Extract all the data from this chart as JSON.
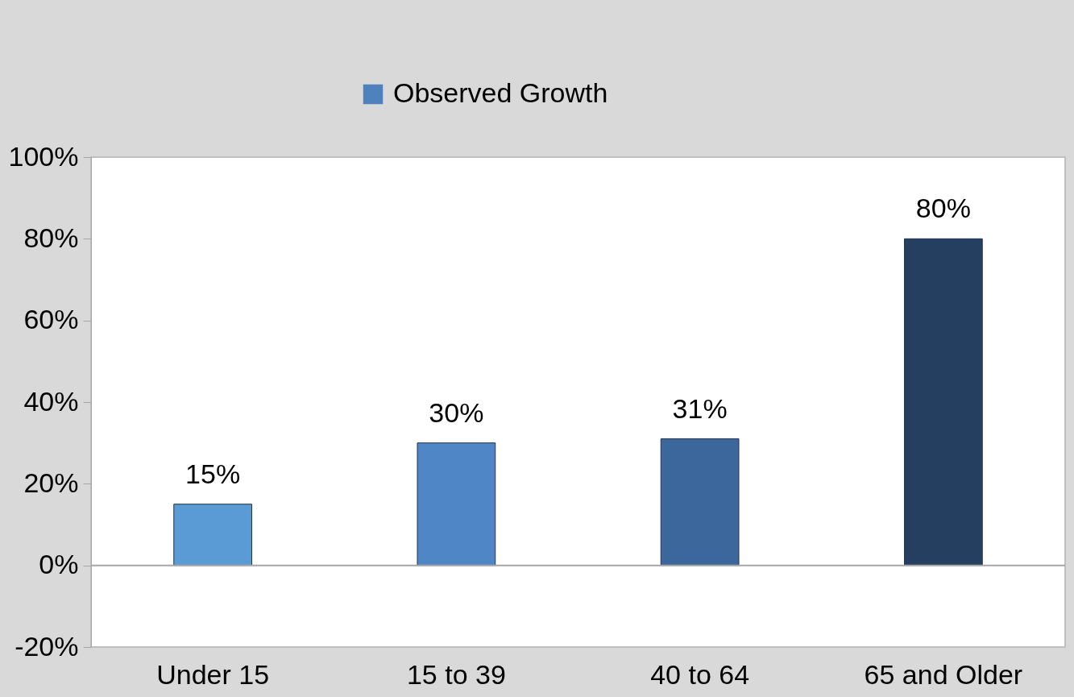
{
  "chart_data": {
    "type": "bar",
    "categories": [
      "Under 15",
      "15 to 39",
      "40 to 64",
      "65 and Older"
    ],
    "series": [
      {
        "name": "Observed Growth",
        "color": "#4f81bd",
        "colors": [
          "#5b9bd5",
          "#4f86c6",
          "#3c679c",
          "#243f60"
        ],
        "values": [
          15,
          30,
          31,
          80
        ],
        "value_labels": [
          "15%",
          "30%",
          "31%",
          "80%"
        ]
      }
    ],
    "ylim": [
      -20,
      100
    ],
    "yticks": [
      {
        "value": -20,
        "label": "-20%"
      },
      {
        "value": 0,
        "label": "0%"
      },
      {
        "value": 20,
        "label": "20%"
      },
      {
        "value": 40,
        "label": "40%"
      },
      {
        "value": 60,
        "label": "60%"
      },
      {
        "value": 80,
        "label": "80%"
      },
      {
        "value": 100,
        "label": "100%"
      }
    ],
    "ref_lines": [
      {
        "axis": "y",
        "value": 0,
        "color": "#a6a6a6"
      }
    ],
    "legend": "top"
  }
}
